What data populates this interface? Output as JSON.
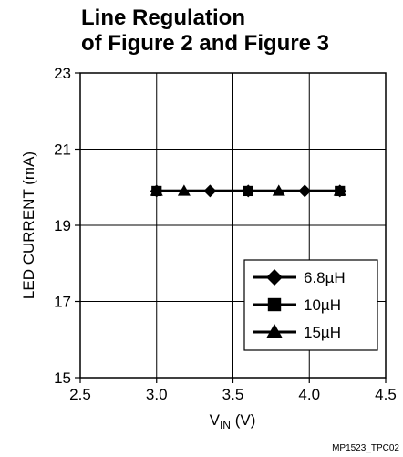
{
  "chart_data": {
    "type": "line",
    "title_lines": [
      "Line Regulation",
      "of Figure 2 and Figure 3"
    ],
    "xlabel_main": "V",
    "xlabel_sub": "IN",
    "xlabel_unit": " (V)",
    "ylabel": "LED CURRENT (mA)",
    "xlim": [
      2.5,
      4.5
    ],
    "ylim": [
      15,
      23
    ],
    "xticks": [
      2.5,
      3.0,
      3.5,
      4.0,
      4.5
    ],
    "xtick_labels": [
      "2.5",
      "3.0",
      "3.5",
      "4.0",
      "4.5"
    ],
    "yticks": [
      15,
      17,
      19,
      21,
      23
    ],
    "ytick_labels": [
      "15",
      "17",
      "19",
      "21",
      "23"
    ],
    "grid": true,
    "legend_position": "bottom-right",
    "series": [
      {
        "name": "6.8µH",
        "marker": "diamond",
        "x": [
          3.0,
          3.35,
          3.6,
          3.97,
          4.2
        ],
        "y": [
          19.9,
          19.9,
          19.9,
          19.9,
          19.9
        ]
      },
      {
        "name": "10µH",
        "marker": "square",
        "x": [
          3.0,
          3.6,
          4.2
        ],
        "y": [
          19.9,
          19.9,
          19.9
        ]
      },
      {
        "name": "15µH",
        "marker": "triangle",
        "x": [
          3.0,
          3.18,
          3.8,
          4.2
        ],
        "y": [
          19.9,
          19.9,
          19.9,
          19.9
        ]
      }
    ],
    "colors": {
      "line": "#000000",
      "grid": "#000000",
      "background": "#ffffff"
    },
    "footnote": "MP1523_TPC02"
  }
}
